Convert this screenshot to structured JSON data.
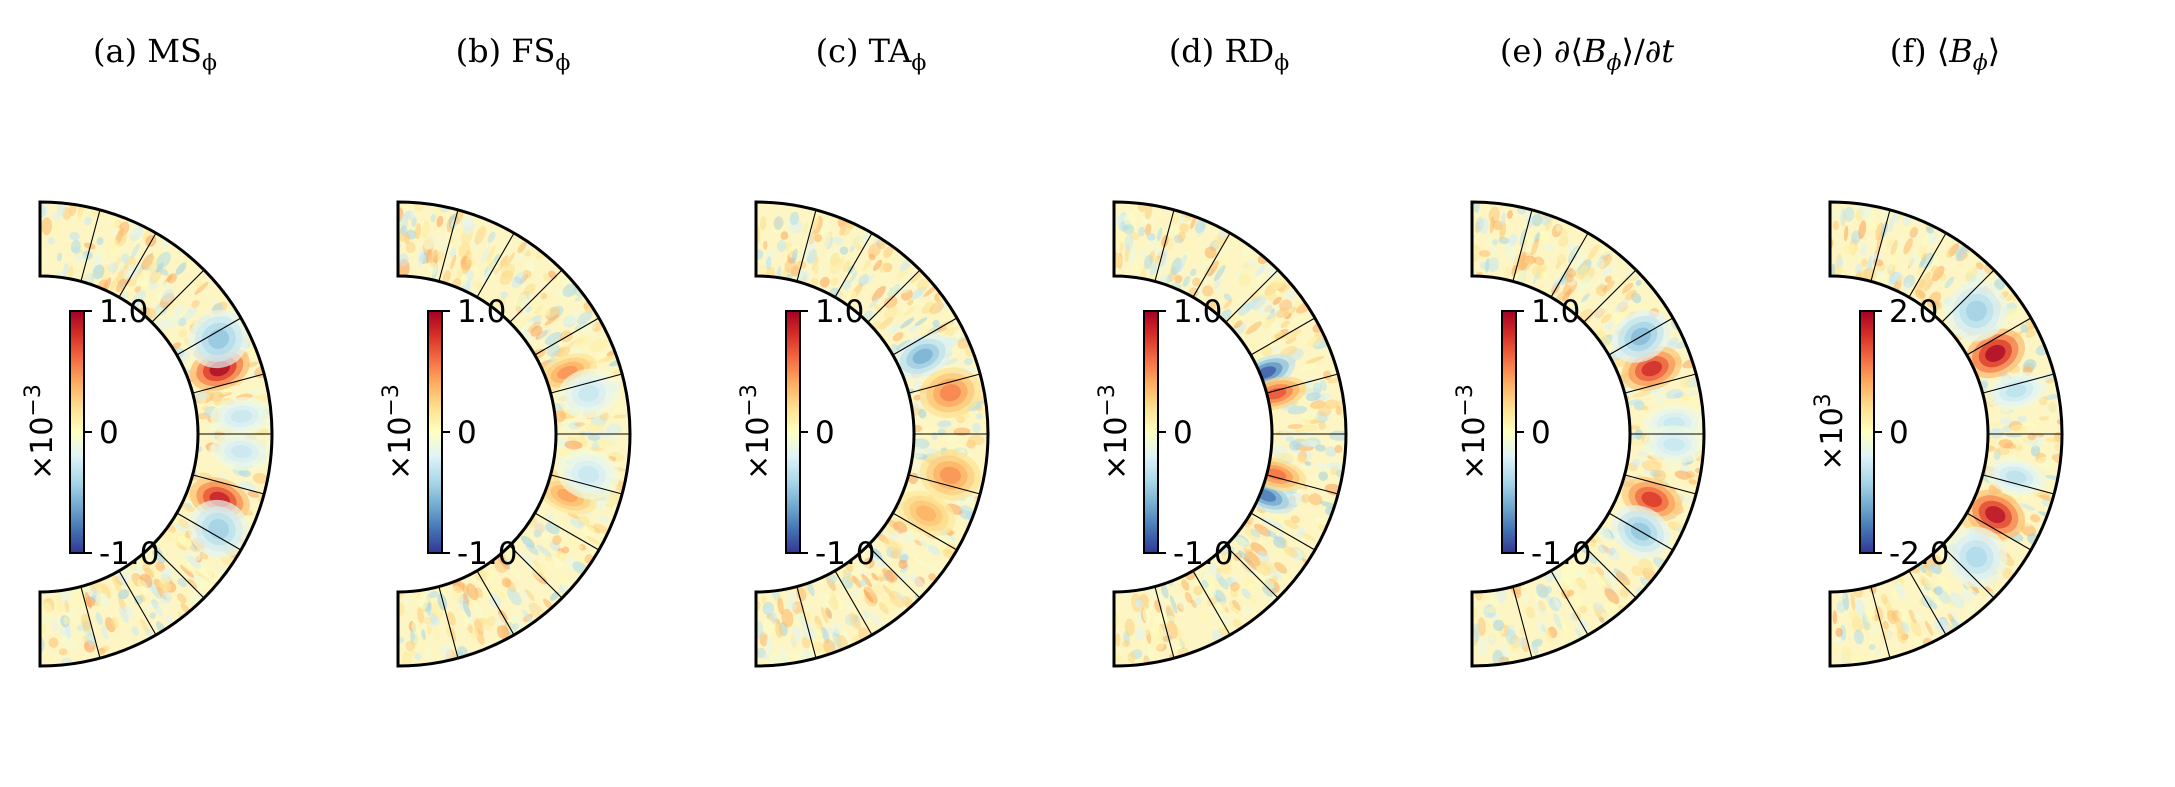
{
  "chart_data": {
    "type": "heatmap",
    "description_panels": 6,
    "panels": [
      {
        "label": "(a) MS",
        "sub": "ϕ",
        "sup": "",
        "colorbar": {
          "max": "1.0",
          "mid": "0",
          "min": "-1.0",
          "scale": "×10",
          "exp": "−3"
        },
        "blobs": [
          {
            "lat": 20,
            "r": 0.45,
            "sign": 1,
            "amp": 1.0,
            "w": 7
          },
          {
            "lat": -20,
            "r": 0.45,
            "sign": 1,
            "amp": 0.9,
            "w": 7
          },
          {
            "lat": 28,
            "r": 0.6,
            "sign": -1,
            "amp": 0.5,
            "w": 9
          },
          {
            "lat": -28,
            "r": 0.6,
            "sign": -1,
            "amp": 0.45,
            "w": 9
          },
          {
            "lat": 5,
            "r": 0.6,
            "sign": -1,
            "amp": 0.3,
            "w": 6
          },
          {
            "lat": -5,
            "r": 0.6,
            "sign": -1,
            "amp": 0.3,
            "w": 6
          }
        ]
      },
      {
        "label": "(b) FS",
        "sub": "ϕ",
        "sup": "",
        "colorbar": {
          "max": "1.0",
          "mid": "0",
          "min": "-1.0",
          "scale": "×10",
          "exp": "−3"
        },
        "blobs": [
          {
            "lat": 20,
            "r": 0.3,
            "sign": 1,
            "amp": 0.5,
            "w": 6
          },
          {
            "lat": -20,
            "r": 0.3,
            "sign": 1,
            "amp": 0.45,
            "w": 6
          },
          {
            "lat": 12,
            "r": 0.5,
            "sign": -1,
            "amp": 0.3,
            "w": 8
          },
          {
            "lat": -12,
            "r": 0.5,
            "sign": -1,
            "amp": 0.3,
            "w": 8
          }
        ]
      },
      {
        "label": "(c) TA",
        "sub": "ϕ",
        "sup": "",
        "colorbar": {
          "max": "1.0",
          "mid": "0",
          "min": "-1.0",
          "scale": "×10",
          "exp": "−3"
        },
        "blobs": [
          {
            "lat": 25,
            "r": 0.35,
            "sign": -1,
            "amp": 0.6,
            "w": 7
          },
          {
            "lat": 12,
            "r": 0.55,
            "sign": 1,
            "amp": 0.55,
            "w": 8
          },
          {
            "lat": -12,
            "r": 0.55,
            "sign": 1,
            "amp": 0.5,
            "w": 8
          },
          {
            "lat": -25,
            "r": 0.4,
            "sign": 1,
            "amp": 0.4,
            "w": 7
          }
        ]
      },
      {
        "label": "(d) RD",
        "sub": "ϕ",
        "sup": "",
        "colorbar": {
          "max": "1.0",
          "mid": "0",
          "min": "-1.0",
          "scale": "×10",
          "exp": "−3"
        },
        "blobs": [
          {
            "lat": 22,
            "r": 0.08,
            "sign": -1,
            "amp": 0.9,
            "w": 6
          },
          {
            "lat": -22,
            "r": 0.08,
            "sign": -1,
            "amp": 0.8,
            "w": 6
          },
          {
            "lat": 14,
            "r": 0.12,
            "sign": 1,
            "amp": 0.7,
            "w": 6
          },
          {
            "lat": -14,
            "r": 0.12,
            "sign": 1,
            "amp": 0.6,
            "w": 6
          }
        ]
      },
      {
        "label": "(e) ∂⟨",
        "sub": "",
        "sup": "",
        "italic": "B",
        "italicSub": "ϕ",
        "tail": "⟩/∂",
        "tailItalic": "t",
        "colorbar": {
          "max": "1.0",
          "mid": "0",
          "min": "-1.0",
          "scale": "×10",
          "exp": "−3"
        },
        "blobs": [
          {
            "lat": 20,
            "r": 0.45,
            "sign": 1,
            "amp": 0.85,
            "w": 7
          },
          {
            "lat": -20,
            "r": 0.45,
            "sign": 1,
            "amp": 0.8,
            "w": 7
          },
          {
            "lat": 30,
            "r": 0.5,
            "sign": -1,
            "amp": 0.55,
            "w": 8
          },
          {
            "lat": -30,
            "r": 0.5,
            "sign": -1,
            "amp": 0.5,
            "w": 8
          },
          {
            "lat": 3,
            "r": 0.6,
            "sign": -1,
            "amp": 0.3,
            "w": 6
          },
          {
            "lat": -3,
            "r": 0.6,
            "sign": -1,
            "amp": 0.3,
            "w": 6
          }
        ]
      },
      {
        "label": "(f) ⟨",
        "sub": "",
        "sup": "",
        "italic": "B",
        "italicSub": "ϕ",
        "tail": "⟩",
        "tailItalic": "",
        "colorbar": {
          "max": "2.0",
          "mid": "0",
          "min": "-2.0",
          "scale": "×10",
          "exp": "3"
        },
        "blobs": [
          {
            "lat": 26,
            "r": 0.35,
            "sign": 1,
            "amp": 1.0,
            "w": 8
          },
          {
            "lat": -26,
            "r": 0.35,
            "sign": 1,
            "amp": 0.95,
            "w": 8
          },
          {
            "lat": 40,
            "r": 0.45,
            "sign": -1,
            "amp": 0.45,
            "w": 10
          },
          {
            "lat": -40,
            "r": 0.45,
            "sign": -1,
            "amp": 0.4,
            "w": 10
          },
          {
            "lat": 13,
            "r": 0.45,
            "sign": -1,
            "amp": 0.35,
            "w": 6
          },
          {
            "lat": -13,
            "r": 0.45,
            "sign": -1,
            "amp": 0.35,
            "w": 6
          }
        ]
      }
    ],
    "colormap": "RdYlBu_r",
    "colormap_stops": [
      "#313695",
      "#4575b4",
      "#74add1",
      "#abd9e9",
      "#e0f3f8",
      "#ffffbf",
      "#fee090",
      "#fdae61",
      "#f46d43",
      "#d73027",
      "#a50026"
    ],
    "background_value_color": "#fdf6c4",
    "latitude_grid_deg": [
      75,
      60,
      45,
      30,
      15,
      0,
      -15,
      -30,
      -45,
      -60,
      -75
    ],
    "latitude_extent_deg": [
      -90,
      90
    ]
  }
}
